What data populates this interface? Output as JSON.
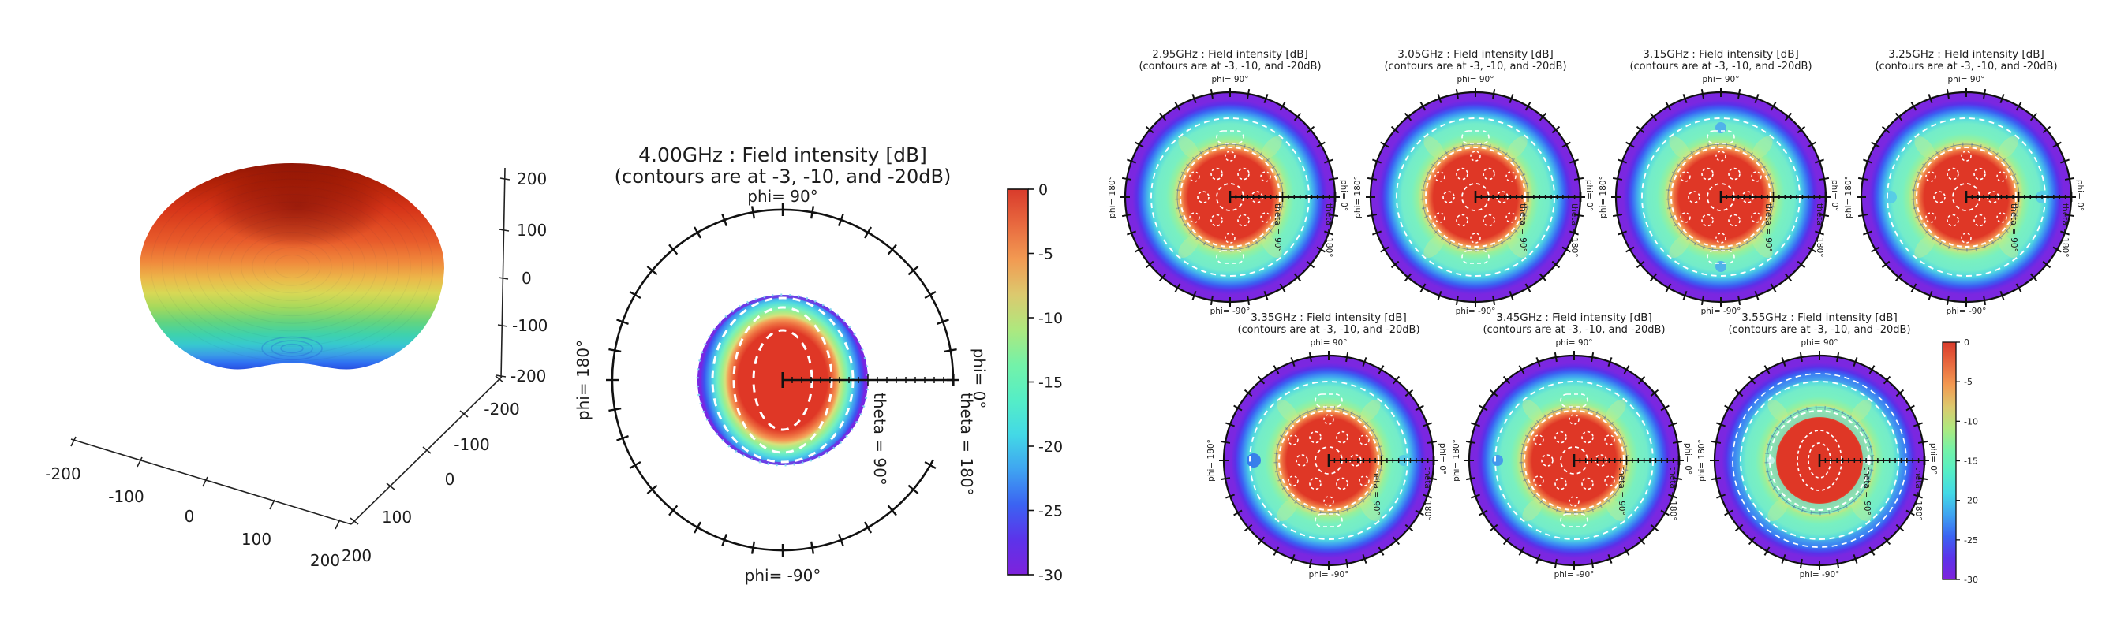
{
  "chart_data": {
    "type": "polar-contour-grid",
    "description": "Antenna far-field intensity patterns: one 3D surface plot, one large polar contour map at 4.00GHz with colorbar, and seven small polar contour maps (2.95-3.55GHz) with shared colorbar",
    "main_plot": {
      "type": "polar-contour",
      "frequency_GHz": 4.0,
      "title": "4.00GHz : Field intensity [dB]",
      "contour_levels_dB": [
        -3,
        -10,
        -20
      ],
      "angular_axis": {
        "label": "phi",
        "labeled_angles_deg": [
          90,
          180,
          -90,
          0
        ]
      },
      "radial_axis": {
        "label": "theta",
        "range_deg": [
          0,
          180
        ],
        "marked_deg": [
          90,
          180
        ]
      },
      "beam": {
        "max_dB": 0,
        "filled_extent_theta_deg": 90
      },
      "colorbar": {
        "range_dB": [
          0,
          -30
        ],
        "ticks": [
          0,
          -5,
          -10,
          -15,
          -20,
          -25,
          -30
        ]
      }
    },
    "subplots": {
      "type": "polar-contour",
      "frequencies_GHz": [
        2.95,
        3.05,
        3.15,
        3.25,
        3.35,
        3.45,
        3.55
      ],
      "contour_levels_dB": [
        -3,
        -10,
        -20
      ],
      "angular_axis": {
        "label": "phi",
        "labeled_angles_deg": [
          90,
          180,
          -90,
          0
        ]
      },
      "radial_axis": {
        "label": "theta",
        "range_deg": [
          0,
          180
        ],
        "marked_deg": [
          90,
          180
        ]
      },
      "colorbar": {
        "range_dB": [
          0,
          -30
        ],
        "ticks": [
          0,
          -5,
          -10,
          -15,
          -20,
          -25,
          -30
        ]
      }
    },
    "surface_3d": {
      "type": "3d-surface",
      "colormap": "rainbow (red = max at top, blue = min at bottom)",
      "x_ticks": [
        -200,
        -100,
        0,
        100,
        200
      ],
      "y_ticks": [
        -200,
        -100,
        0,
        100,
        200
      ],
      "z_ticks": [
        -200,
        -100,
        0,
        100,
        200
      ],
      "xlim": [
        -200,
        200
      ],
      "ylim": [
        -200,
        200
      ],
      "zlim": [
        -200,
        200
      ]
    }
  },
  "plot3d": {
    "x_ticks": [
      "-200",
      "-100",
      "0",
      "100",
      "200"
    ],
    "y_ticks": [
      "200",
      "100",
      "0",
      "-100",
      "-200"
    ],
    "z_ticks": [
      "200",
      "100",
      "0",
      "-100",
      "-200"
    ]
  },
  "center_plot": {
    "title": "4.00GHz : Field intensity [dB]",
    "subtitle": "(contours are at -3, -10, and -20dB)"
  },
  "polar_labels": {
    "top": "phi= 90°",
    "left": "phi= 180°",
    "bottom": "phi= -90°",
    "right": "phi= 0°",
    "theta_mid": "theta = 90°",
    "theta_outer": "theta = 180°"
  },
  "colorbar_ticks": [
    "0",
    "-5",
    "-10",
    "-15",
    "-20",
    "-25",
    "-30"
  ],
  "small_plots": [
    {
      "title": "2.95GHz : Field intensity [dB]",
      "subtitle": "(contours are at -3, -10, and -20dB)"
    },
    {
      "title": "3.05GHz : Field intensity [dB]",
      "subtitle": "(contours are at -3, -10, and -20dB)"
    },
    {
      "title": "3.15GHz : Field intensity [dB]",
      "subtitle": "(contours are at -3, -10, and -20dB)"
    },
    {
      "title": "3.25GHz : Field intensity [dB]",
      "subtitle": "(contours are at -3, -10, and -20dB)"
    },
    {
      "title": "3.35GHz : Field intensity [dB]",
      "subtitle": "(contours are at -3, -10, and -20dB)"
    },
    {
      "title": "3.45GHz : Field intensity [dB]",
      "subtitle": "(contours are at -3, -10, and -20dB)"
    },
    {
      "title": "3.55GHz : Field intensity [dB]",
      "subtitle": "(contours are at -3, -10, and -20dB)"
    }
  ],
  "palette": {
    "rainbow_top_to_bottom": [
      "#d93b2b",
      "#e8693f",
      "#f29a52",
      "#dcc96e",
      "#aee87e",
      "#74f2a8",
      "#55eec6",
      "#43d9e6",
      "#3fa4f1",
      "#3b63f2",
      "#5c33ea",
      "#7e22dc"
    ],
    "contour_white": "#ffffff",
    "axis_black": "#111111",
    "background": "#ffffff"
  }
}
